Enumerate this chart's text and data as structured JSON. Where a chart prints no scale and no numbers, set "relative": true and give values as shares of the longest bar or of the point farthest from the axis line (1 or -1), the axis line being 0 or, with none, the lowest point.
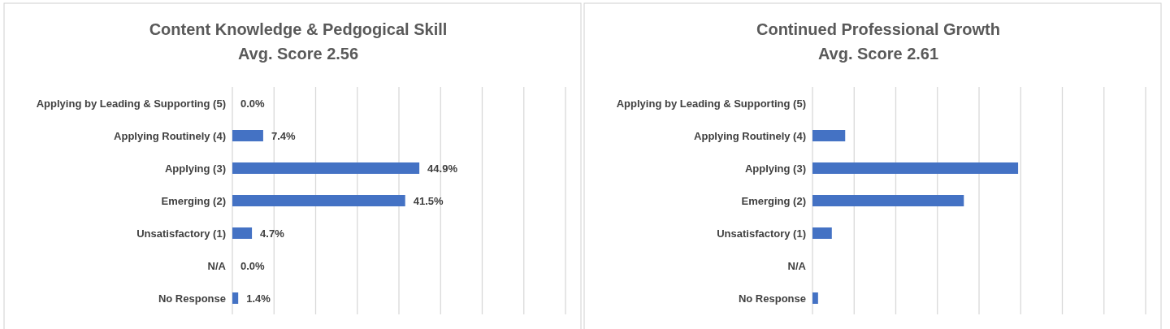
{
  "chart_data": [
    {
      "type": "bar",
      "orientation": "horizontal",
      "title": "Content Knowledge & Pedgogical Skill",
      "subtitle": "Avg. Score 2.56",
      "categories": [
        "Applying by Leading & Supporting (5)",
        "Applying Routinely (4)",
        "Applying (3)",
        "Emerging (2)",
        "Unsatisfactory (1)",
        "N/A",
        "No Response"
      ],
      "values": [
        0,
        7.4,
        44.9,
        41.5,
        4.7,
        0,
        1.4
      ],
      "value_labels": [
        "0.0%",
        "7.4%",
        "44.9%",
        "41.5%",
        "4.7%",
        "0.0%",
        "1.4%"
      ],
      "color": "#4472c4",
      "xlim": [
        0,
        80
      ],
      "xticks": [
        {
          "value": 0,
          "label": null
        },
        {
          "value": 10,
          "label": null
        },
        {
          "value": 20,
          "label": null
        },
        {
          "value": 30,
          "label": null
        },
        {
          "value": 40,
          "label": null
        },
        {
          "value": 50,
          "label": null
        },
        {
          "value": 60,
          "label": null
        },
        {
          "value": 70,
          "label": null
        },
        {
          "value": 80,
          "label": null
        }
      ],
      "grid": "x"
    },
    {
      "type": "bar",
      "orientation": "horizontal",
      "title": "Continued Professional Growth",
      "subtitle": "Avg. Score 2.61",
      "categories": [
        "Applying by Leading & Supporting (5)",
        "Applying Routinely (4)",
        "Applying (3)",
        "Emerging (2)",
        "Unsatisfactory (1)",
        "N/A",
        "No Response"
      ],
      "values": [
        0,
        0.159,
        1,
        0.736,
        0.094,
        0,
        0.027
      ],
      "relative": true,
      "color": "#4472c4",
      "grid": "x"
    }
  ]
}
